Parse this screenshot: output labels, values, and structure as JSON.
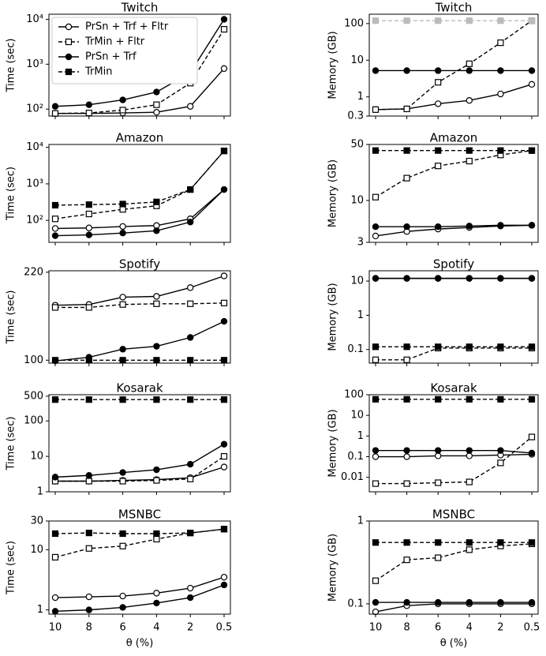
{
  "chart_data": [
    {
      "type": "line",
      "title": "Twitch",
      "ylabel": "Time (sec)",
      "yscale": "log",
      "ylim": [
        70,
        13000
      ],
      "yticks": [
        {
          "value": 100,
          "label": "10²"
        },
        {
          "value": 1000,
          "label": "10³"
        },
        {
          "value": 10000,
          "label": "10⁴"
        }
      ],
      "legend": "upper left",
      "series": [
        {
          "name": "PrSn + Trf + Fltr",
          "color": "#000000",
          "marker": "open-circle",
          "linestyle": "solid",
          "values": [
            80,
            80,
            82,
            85,
            115,
            800
          ]
        },
        {
          "name": "TrMin + Fltr",
          "color": "#000000",
          "marker": "open-square",
          "linestyle": "dashed",
          "values": [
            80,
            82,
            95,
            125,
            380,
            6000
          ]
        },
        {
          "name": "PrSn + Trf",
          "color": "#000000",
          "marker": "filled-circle",
          "linestyle": "solid",
          "values": [
            115,
            125,
            160,
            240,
            650,
            10000
          ]
        },
        {
          "name": "TrMin",
          "color": "#000000",
          "marker": "filled-square",
          "linestyle": "dashed",
          "values": [
            null,
            null,
            null,
            null,
            null,
            null
          ]
        }
      ]
    },
    {
      "type": "line",
      "title": "Twitch",
      "ylabel": "Memory (GB)",
      "yscale": "log",
      "ylim": [
        0.3,
        180
      ],
      "yticks": [
        0.3,
        1,
        10,
        100
      ],
      "series": [
        {
          "color": "#000000",
          "marker": "open-circle",
          "linestyle": "solid",
          "values": [
            0.45,
            0.47,
            0.65,
            0.8,
            1.2,
            2.2
          ]
        },
        {
          "color": "#000000",
          "marker": "open-square",
          "linestyle": "dashed",
          "values": [
            0.45,
            0.47,
            2.5,
            8,
            30,
            120
          ]
        },
        {
          "color": "#000000",
          "marker": "filled-circle",
          "linestyle": "solid",
          "values": [
            5.2,
            5.2,
            5.2,
            5.2,
            5.2,
            5.2
          ]
        },
        {
          "color": "#bbbbbb",
          "marker": "filled-square",
          "linestyle": "dashed",
          "values": [
            120,
            120,
            120,
            120,
            120,
            120
          ]
        }
      ]
    },
    {
      "type": "line",
      "title": "Amazon",
      "ylabel": "Time (sec)",
      "yscale": "log",
      "ylim": [
        25,
        12000
      ],
      "yticks": [
        {
          "value": 100,
          "label": "10²"
        },
        {
          "value": 1000,
          "label": "10³"
        },
        {
          "value": 10000,
          "label": "10⁴"
        }
      ],
      "series": [
        {
          "color": "#000000",
          "marker": "open-circle",
          "linestyle": "solid",
          "values": [
            60,
            62,
            68,
            72,
            110,
            700
          ]
        },
        {
          "color": "#000000",
          "marker": "open-square",
          "linestyle": "dashed",
          "values": [
            110,
            150,
            200,
            250,
            700,
            8000
          ]
        },
        {
          "color": "#000000",
          "marker": "filled-circle",
          "linestyle": "solid",
          "values": [
            38,
            40,
            45,
            52,
            90,
            700
          ]
        },
        {
          "color": "#000000",
          "marker": "filled-square",
          "linestyle": "dashed",
          "values": [
            260,
            270,
            280,
            320,
            700,
            8000
          ]
        }
      ]
    },
    {
      "type": "line",
      "title": "Amazon",
      "ylabel": "Memory (GB)",
      "yscale": "log",
      "ylim": [
        3,
        50
      ],
      "yticks": [
        3,
        10,
        50
      ],
      "series": [
        {
          "color": "#000000",
          "marker": "open-circle",
          "linestyle": "solid",
          "values": [
            3.6,
            4.1,
            4.4,
            4.6,
            4.8,
            4.9
          ]
        },
        {
          "color": "#000000",
          "marker": "open-square",
          "linestyle": "dashed",
          "values": [
            11,
            19,
            27,
            31,
            37,
            42
          ]
        },
        {
          "color": "#000000",
          "marker": "filled-circle",
          "linestyle": "solid",
          "values": [
            4.7,
            4.7,
            4.7,
            4.8,
            4.9,
            4.9
          ]
        },
        {
          "color": "#000000",
          "marker": "filled-square",
          "linestyle": "dashed",
          "values": [
            42,
            42,
            42,
            42,
            42,
            42
          ]
        }
      ]
    },
    {
      "type": "line",
      "title": "Spotify",
      "ylabel": "Time (sec)",
      "yscale": "linear",
      "ylim": [
        96,
        222
      ],
      "yticks": [
        100,
        220
      ],
      "series": [
        {
          "color": "#000000",
          "marker": "open-circle",
          "linestyle": "solid",
          "values": [
            175,
            176,
            186,
            187,
            199,
            215
          ]
        },
        {
          "color": "#000000",
          "marker": "open-square",
          "linestyle": "dashed",
          "values": [
            172,
            172,
            176,
            177,
            177,
            178
          ]
        },
        {
          "color": "#000000",
          "marker": "filled-circle",
          "linestyle": "solid",
          "values": [
            99,
            104,
            115,
            119,
            131,
            153
          ]
        },
        {
          "color": "#000000",
          "marker": "filled-square",
          "linestyle": "dashed",
          "values": [
            100,
            100,
            100,
            100,
            100,
            100
          ]
        }
      ]
    },
    {
      "type": "line",
      "title": "Spotify",
      "ylabel": "Memory (GB)",
      "yscale": "log",
      "ylim": [
        0.04,
        20
      ],
      "yticks": [
        0.1,
        1,
        10
      ],
      "series": [
        {
          "color": "#000000",
          "marker": "open-circle",
          "linestyle": "solid",
          "values": [
            12,
            12,
            12,
            12,
            12,
            12
          ]
        },
        {
          "color": "#000000",
          "marker": "open-square",
          "linestyle": "dashed",
          "values": [
            0.05,
            0.05,
            0.11,
            0.11,
            0.11,
            0.11
          ]
        },
        {
          "color": "#000000",
          "marker": "filled-circle",
          "linestyle": "solid",
          "values": [
            12,
            12,
            12,
            12,
            12,
            12
          ]
        },
        {
          "color": "#000000",
          "marker": "filled-square",
          "linestyle": "dashed",
          "values": [
            0.12,
            0.12,
            0.12,
            0.12,
            0.12,
            0.12
          ]
        }
      ]
    },
    {
      "type": "line",
      "title": "Kosarak",
      "ylabel": "Time (sec)",
      "yscale": "log",
      "ylim": [
        1,
        550
      ],
      "yticks": [
        1,
        10,
        100,
        500
      ],
      "series": [
        {
          "color": "#000000",
          "marker": "open-circle",
          "linestyle": "solid",
          "values": [
            2,
            2,
            2.1,
            2.2,
            2.5,
            5
          ]
        },
        {
          "color": "#000000",
          "marker": "open-square",
          "linestyle": "dashed",
          "values": [
            2,
            2,
            2,
            2.1,
            2.3,
            10
          ]
        },
        {
          "color": "#000000",
          "marker": "filled-circle",
          "linestyle": "solid",
          "values": [
            2.6,
            2.9,
            3.5,
            4.2,
            6,
            22
          ]
        },
        {
          "color": "#000000",
          "marker": "filled-square",
          "linestyle": "dashed",
          "values": [
            400,
            400,
            400,
            400,
            400,
            400
          ]
        }
      ]
    },
    {
      "type": "line",
      "title": "Kosarak",
      "ylabel": "Memory (GB)",
      "yscale": "log",
      "ylim": [
        0.002,
        100
      ],
      "yticks": [
        0.01,
        0.1,
        1,
        10,
        100
      ],
      "series": [
        {
          "color": "#000000",
          "marker": "open-circle",
          "linestyle": "solid",
          "values": [
            0.1,
            0.1,
            0.11,
            0.11,
            0.12,
            0.13
          ]
        },
        {
          "color": "#000000",
          "marker": "open-square",
          "linestyle": "dashed",
          "values": [
            0.005,
            0.005,
            0.0055,
            0.006,
            0.05,
            0.9
          ]
        },
        {
          "color": "#000000",
          "marker": "filled-circle",
          "linestyle": "solid",
          "values": [
            0.2,
            0.2,
            0.2,
            0.2,
            0.2,
            0.15
          ]
        },
        {
          "color": "#000000",
          "marker": "filled-square",
          "linestyle": "dashed",
          "values": [
            60,
            60,
            60,
            60,
            60,
            60
          ]
        }
      ]
    },
    {
      "type": "line",
      "title": "MSNBC",
      "ylabel": "Time (sec)",
      "xlabel": "θ (%)",
      "yscale": "log",
      "ylim": [
        0.85,
        30
      ],
      "categories": [
        "10",
        "8",
        "6",
        "4",
        "2",
        "0.5"
      ],
      "yticks": [
        1,
        10,
        30
      ],
      "series": [
        {
          "color": "#000000",
          "marker": "open-circle",
          "linestyle": "solid",
          "values": [
            1.6,
            1.65,
            1.7,
            1.9,
            2.3,
            3.5
          ]
        },
        {
          "color": "#000000",
          "marker": "open-square",
          "linestyle": "dashed",
          "values": [
            7.5,
            10.5,
            11.5,
            15,
            19,
            22
          ]
        },
        {
          "color": "#000000",
          "marker": "filled-circle",
          "linestyle": "solid",
          "values": [
            0.95,
            1.0,
            1.1,
            1.3,
            1.6,
            2.6
          ]
        },
        {
          "color": "#000000",
          "marker": "filled-square",
          "linestyle": "dashed",
          "values": [
            18.5,
            19,
            18.5,
            18.5,
            19,
            22
          ]
        }
      ]
    },
    {
      "type": "line",
      "title": "MSNBC",
      "ylabel": "Memory (GB)",
      "xlabel": "θ (%)",
      "yscale": "log",
      "ylim": [
        0.075,
        1
      ],
      "categories": [
        "10",
        "8",
        "6",
        "4",
        "2",
        "0.5"
      ],
      "yticks": [
        0.1,
        1
      ],
      "series": [
        {
          "color": "#000000",
          "marker": "open-circle",
          "linestyle": "solid",
          "values": [
            0.08,
            0.095,
            0.1,
            0.1,
            0.1,
            0.1
          ]
        },
        {
          "color": "#000000",
          "marker": "open-square",
          "linestyle": "dashed",
          "values": [
            0.19,
            0.34,
            0.36,
            0.45,
            0.5,
            0.53
          ]
        },
        {
          "color": "#000000",
          "marker": "filled-circle",
          "linestyle": "solid",
          "values": [
            0.104,
            0.104,
            0.104,
            0.104,
            0.104,
            0.104
          ]
        },
        {
          "color": "#000000",
          "marker": "filled-square",
          "linestyle": "dashed",
          "values": [
            0.55,
            0.55,
            0.55,
            0.55,
            0.55,
            0.55
          ]
        }
      ]
    }
  ]
}
